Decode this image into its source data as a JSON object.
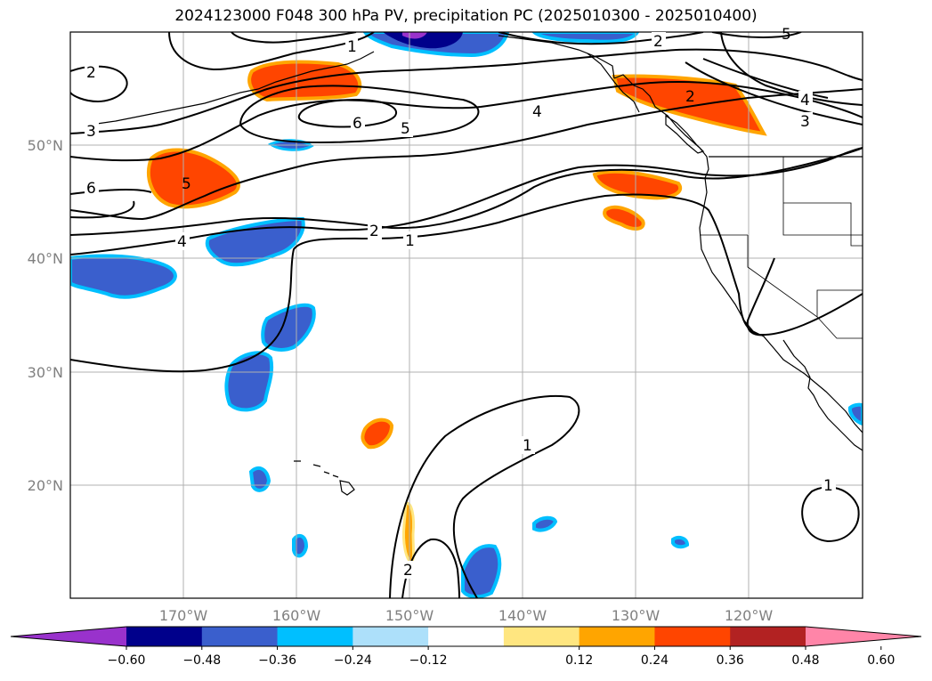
{
  "title": "2024123000 F048 300 hPa PV, precipitation PC (2025010300 - 2025010400)",
  "map": {
    "lat_labels": [
      "50°N",
      "40°N",
      "30°N",
      "20°N"
    ],
    "lon_labels": [
      "170°W",
      "160°W",
      "150°W",
      "140°W",
      "130°W",
      "120°W"
    ],
    "contour_labels": [
      {
        "text": "1"
      },
      {
        "text": "2"
      },
      {
        "text": "5"
      },
      {
        "text": "2"
      },
      {
        "text": "2"
      },
      {
        "text": "4"
      },
      {
        "text": "3"
      },
      {
        "text": "4"
      },
      {
        "text": "6"
      },
      {
        "text": "5"
      },
      {
        "text": "3"
      },
      {
        "text": "5"
      },
      {
        "text": "6"
      },
      {
        "text": "2"
      },
      {
        "text": "1"
      },
      {
        "text": "4"
      },
      {
        "text": "1"
      },
      {
        "text": "1"
      },
      {
        "text": "2"
      }
    ]
  },
  "colorbar": {
    "ticks": [
      "−0.60",
      "−0.48",
      "−0.36",
      "−0.24",
      "−0.12",
      "0.12",
      "0.24",
      "0.36",
      "0.48",
      "0.60"
    ],
    "colors": [
      "#9932CC",
      "#00008B",
      "#3A5FCD",
      "#00BFFF",
      "#ADE0FA",
      "#FFFFFF",
      "#FFE680",
      "#FFA500",
      "#FF4500",
      "#B22222",
      "#FF85A8"
    ]
  }
}
